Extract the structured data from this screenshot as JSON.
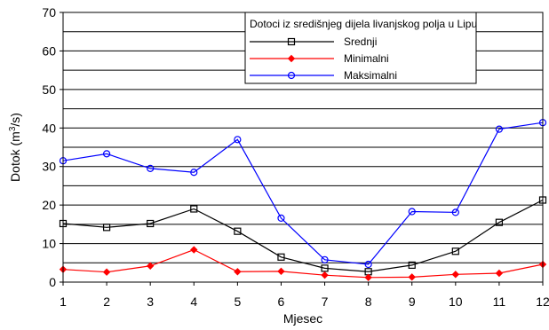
{
  "chart_data": {
    "type": "line",
    "title": "",
    "xlabel": "Mjesec",
    "ylabel_main": "Dotok (m",
    "ylabel_sup": "3",
    "ylabel_tail": "/s)",
    "x": [
      1,
      2,
      3,
      4,
      5,
      6,
      7,
      8,
      9,
      10,
      11,
      12
    ],
    "xlim": [
      1,
      12
    ],
    "ylim": [
      0,
      70
    ],
    "yticks": [
      0,
      10,
      20,
      30,
      40,
      50,
      60,
      70
    ],
    "grid": "horizontal",
    "legend": {
      "title": "Dotoci iz središnjeg dijela livanjskog polja u Lipu",
      "placement": "top-right"
    },
    "series": [
      {
        "name": "Srednji",
        "color": "#000000",
        "marker": "square",
        "values": [
          15.2,
          14.2,
          15.2,
          19.0,
          13.2,
          6.5,
          3.6,
          2.7,
          4.4,
          8.0,
          15.5,
          21.3
        ]
      },
      {
        "name": "Minimalni",
        "color": "#ff0000",
        "marker": "diamond",
        "values": [
          3.3,
          2.6,
          4.2,
          8.4,
          2.7,
          2.8,
          1.8,
          1.2,
          1.3,
          2.0,
          2.3,
          4.6
        ]
      },
      {
        "name": "Maksimalni",
        "color": "#0000ff",
        "marker": "circle",
        "values": [
          31.5,
          33.3,
          29.5,
          28.5,
          37.0,
          16.6,
          5.8,
          4.6,
          18.3,
          18.1,
          39.7,
          41.4
        ]
      }
    ]
  }
}
